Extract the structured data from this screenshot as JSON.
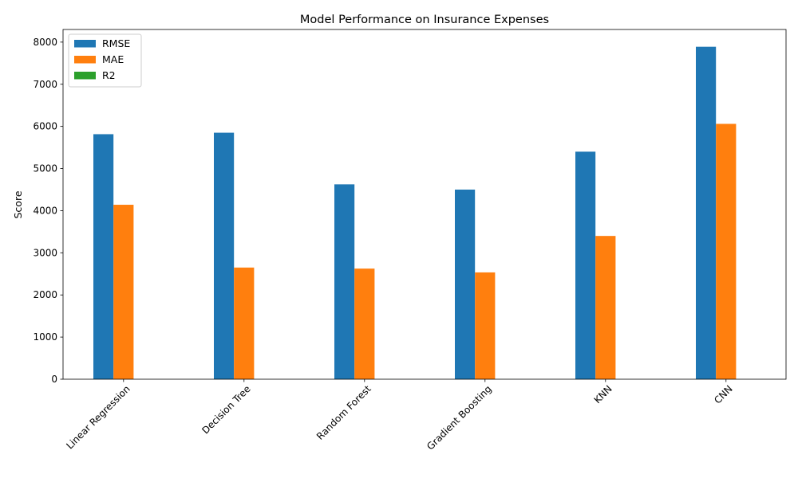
{
  "chart_data": {
    "type": "bar",
    "title": "Model Performance on Insurance Expenses",
    "xlabel": "",
    "ylabel": "Score",
    "categories": [
      "Linear Regression",
      "Decision Tree",
      "Random Forest",
      "Gradient Boosting",
      "KNN",
      "CNN"
    ],
    "series": [
      {
        "name": "RMSE",
        "color": "#1f77b4",
        "values": [
          5815,
          5850,
          4625,
          4500,
          5400,
          7890
        ]
      },
      {
        "name": "MAE",
        "color": "#ff7f0e",
        "values": [
          4140,
          2650,
          2625,
          2535,
          3400,
          6060
        ]
      },
      {
        "name": "R2",
        "color": "#2ca02c",
        "values": [
          0.78,
          0.78,
          0.86,
          0.87,
          0.81,
          0.6
        ]
      }
    ],
    "ylim": [
      0,
      8300
    ],
    "yticks": [
      0,
      1000,
      2000,
      3000,
      4000,
      5000,
      6000,
      7000,
      8000
    ],
    "legend_position": "top-left",
    "grid": false
  }
}
